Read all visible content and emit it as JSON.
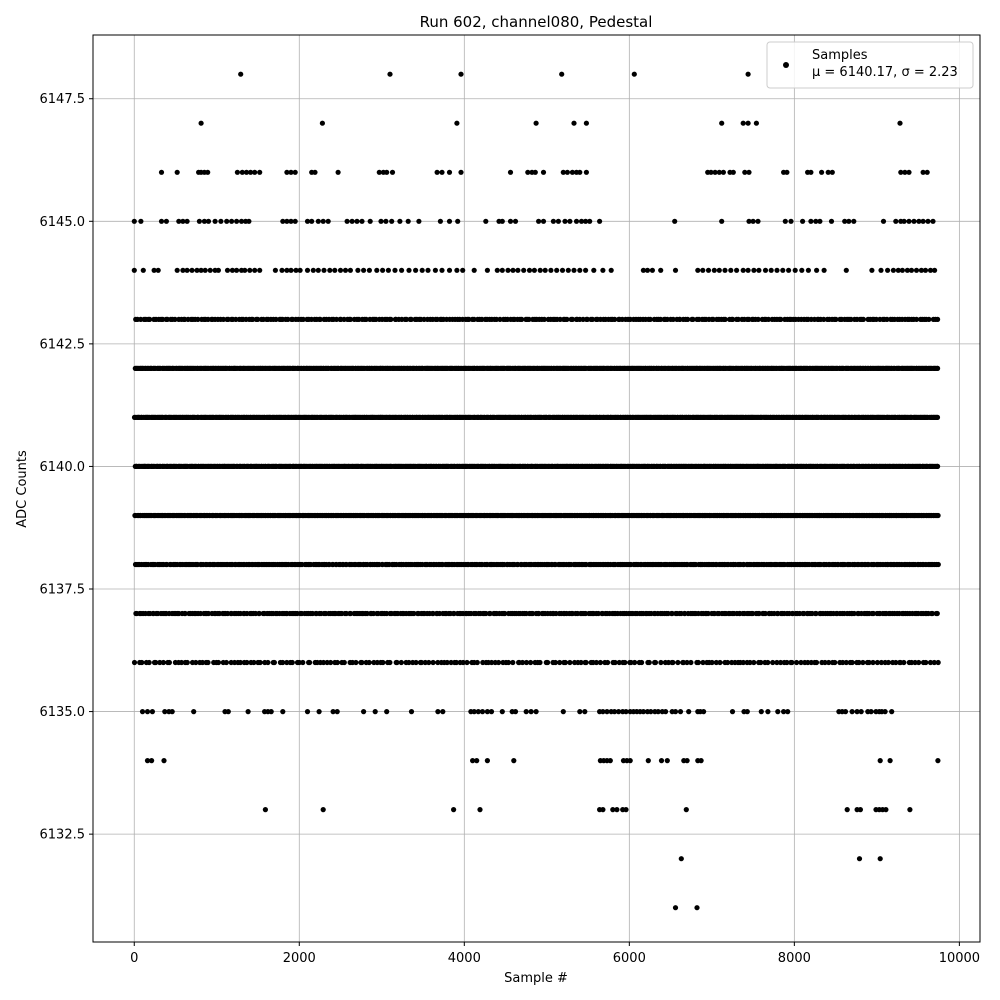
{
  "chart_data": {
    "type": "scatter",
    "title": "Run 602, channel080, Pedestal",
    "xlabel": "Sample #",
    "ylabel": "ADC Counts",
    "xlim": [
      -500,
      10250
    ],
    "ylim": [
      6130.3,
      6148.8
    ],
    "xticks": [
      0,
      2000,
      4000,
      6000,
      8000,
      10000
    ],
    "yticks": [
      6132.5,
      6135.0,
      6137.5,
      6140.0,
      6142.5,
      6145.0,
      6147.5
    ],
    "grid": true,
    "legend": {
      "position": "top-right",
      "entry": "Samples",
      "stats_text": "μ = 6140.17, σ = 2.23"
    },
    "marker_color": "#000000",
    "series": [
      {
        "name": "Samples",
        "bands": [
          {
            "y": 6148,
            "x": [
              1290,
              3100,
              3960,
              5180,
              6060,
              7440
            ]
          },
          {
            "y": 6147,
            "x": [
              810,
              2280,
              3910,
              4870,
              5330,
              5480,
              7120,
              7380,
              7440,
              7540,
              9280
            ]
          },
          {
            "y": 6146,
            "x": [
              330,
              520,
              780,
              810,
              850,
              890,
              1250,
              1310,
              1360,
              1410,
              1460,
              1520,
              1850,
              1900,
              1950,
              2150,
              2190,
              2470,
              2970,
              3020,
              3060,
              3130,
              3670,
              3730,
              3820,
              3960,
              4560,
              4770,
              4820,
              4860,
              4960,
              5200,
              5250,
              5310,
              5360,
              5400,
              5480,
              6950,
              6990,
              7040,
              7090,
              7140,
              7220,
              7260,
              7400,
              7450,
              7870,
              7910,
              8160,
              8200,
              8330,
              8410,
              8460,
              9290,
              9340,
              9390,
              9560,
              9610
            ]
          },
          {
            "y": 6145,
            "x": [
              0,
              80,
              330,
              390,
              540,
              590,
              640,
              790,
              850,
              900,
              980,
              1050,
              1120,
              1180,
              1240,
              1300,
              1350,
              1390,
              1800,
              1850,
              1900,
              1950,
              2100,
              2150,
              2230,
              2290,
              2350,
              2580,
              2640,
              2700,
              2760,
              2860,
              2990,
              3050,
              3120,
              3220,
              3320,
              3450,
              3710,
              3820,
              3920,
              4260,
              4420,
              4460,
              4560,
              4620,
              4900,
              4960,
              5080,
              5140,
              5220,
              5280,
              5360,
              5420,
              5470,
              5520,
              5640,
              6550,
              7120,
              7450,
              7500,
              7560,
              7890,
              7960,
              8100,
              8200,
              8260,
              8310,
              8450,
              8610,
              8660,
              8720,
              9080,
              9230,
              9290,
              9330,
              9390,
              9450,
              9510,
              9560,
              9620,
              9680
            ]
          },
          {
            "y": 6144,
            "x": [
              0,
              110,
              240,
              290,
              520,
              590,
              640,
              700,
              760,
              810,
              860,
              920,
              980,
              1020,
              1130,
              1190,
              1240,
              1300,
              1340,
              1400,
              1460,
              1520,
              1710,
              1790,
              1850,
              1900,
              1960,
              2010,
              2100,
              2170,
              2230,
              2300,
              2370,
              2430,
              2500,
              2560,
              2620,
              2710,
              2780,
              2850,
              2940,
              3010,
              3080,
              3160,
              3240,
              3330,
              3410,
              3490,
              3560,
              3650,
              3730,
              3820,
              3910,
              3980,
              4120,
              4280,
              4400,
              4460,
              4530,
              4590,
              4650,
              4720,
              4790,
              4850,
              4920,
              4980,
              5050,
              5120,
              5190,
              5260,
              5330,
              5400,
              5470,
              5570,
              5680,
              5780,
              6170,
              6220,
              6280,
              6380,
              6560,
              6830,
              6890,
              6960,
              7030,
              7090,
              7160,
              7230,
              7300,
              7380,
              7440,
              7510,
              7570,
              7650,
              7720,
              7790,
              7860,
              7930,
              8010,
              8090,
              8170,
              8270,
              8360,
              8630,
              8940,
              9050,
              9130,
              9200,
              9260,
              9310,
              9370,
              9420,
              9480,
              9540,
              9590,
              9650,
              9700
            ]
          }
        ],
        "dense_bands": [
          {
            "y": 6143,
            "n": 320
          },
          {
            "y": 6142,
            "n": 650
          },
          {
            "y": 6141,
            "n": 650
          },
          {
            "y": 6140,
            "n": 650
          },
          {
            "y": 6139,
            "n": 650
          },
          {
            "y": 6138,
            "n": 470
          },
          {
            "y": 6137,
            "n": 380
          },
          {
            "y": 6136,
            "n": 230
          }
        ],
        "lower_bands": [
          {
            "y": 6135,
            "x": [
              100,
              160,
              220,
              370,
              420,
              460,
              720,
              1100,
              1140,
              1380,
              1580,
              1620,
              1660,
              1800,
              2100,
              2240,
              2410,
              2460,
              2780,
              2920,
              3060,
              3360,
              3680,
              3740,
              4080,
              4120,
              4170,
              4220,
              4280,
              4330,
              4460,
              4580,
              4620,
              4750,
              4810,
              4870,
              5200,
              5400,
              5460,
              5640,
              5680,
              5730,
              5780,
              5820,
              5870,
              5920,
              5960,
              6010,
              6050,
              6090,
              6130,
              6170,
              6220,
              6260,
              6310,
              6350,
              6400,
              6440,
              6520,
              6560,
              6620,
              6720,
              6830,
              6860,
              6900,
              7250,
              7390,
              7430,
              7600,
              7680,
              7800,
              7870,
              7920,
              8540,
              8580,
              8620,
              8700,
              8760,
              8810,
              8890,
              8930,
              8990,
              9030,
              9060,
              9100,
              9180
            ]
          },
          {
            "y": 6134,
            "x": [
              160,
              210,
              360,
              4100,
              4150,
              4280,
              4600,
              5650,
              5690,
              5730,
              5770,
              5930,
              5970,
              6010,
              6230,
              6390,
              6460,
              6660,
              6700,
              6830,
              6870,
              9040,
              9160,
              9740
            ]
          },
          {
            "y": 6133,
            "x": [
              1590,
              2290,
              3870,
              4190,
              5640,
              5680,
              5800,
              5850,
              5920,
              5960,
              6690,
              8640,
              8760,
              8800,
              8990,
              9030,
              9070,
              9110,
              9400
            ]
          },
          {
            "y": 6132,
            "x": [
              6630,
              8790,
              9040
            ]
          },
          {
            "y": 6131,
            "x": [
              6560,
              6820
            ]
          }
        ]
      }
    ]
  }
}
